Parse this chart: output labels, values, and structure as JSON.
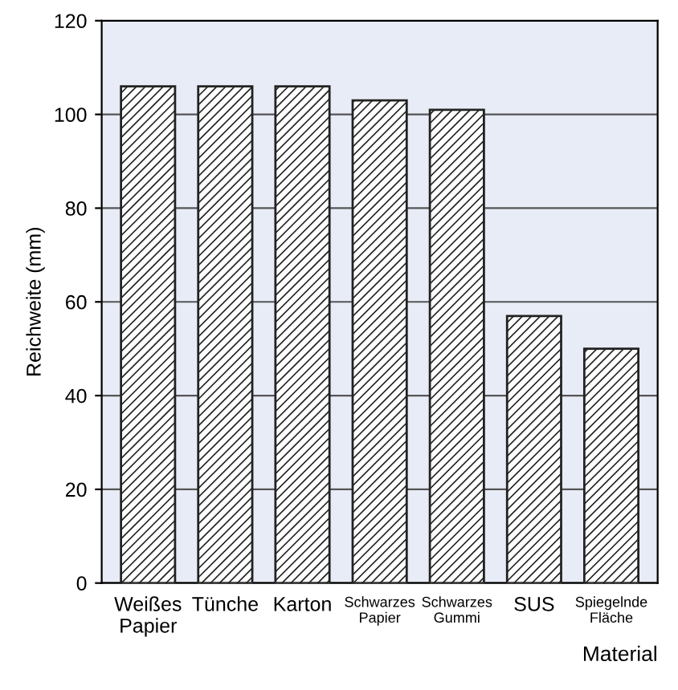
{
  "chart_data": {
    "type": "bar",
    "xlabel": "Material",
    "ylabel": "Reichweite (mm)",
    "categories": [
      "Weißes\nPapier",
      "Tünche",
      "Karton",
      "Schwarzes\nPapier",
      "Schwarzes\nGummi",
      "SUS",
      "Spiegelnde\nFläche"
    ],
    "values": [
      106,
      106,
      106,
      103,
      101,
      57,
      50
    ],
    "color": "#222222",
    "ylim": [
      0,
      120
    ],
    "yticks": [
      0,
      20,
      40,
      60,
      80,
      100,
      120
    ],
    "grid": "y"
  }
}
